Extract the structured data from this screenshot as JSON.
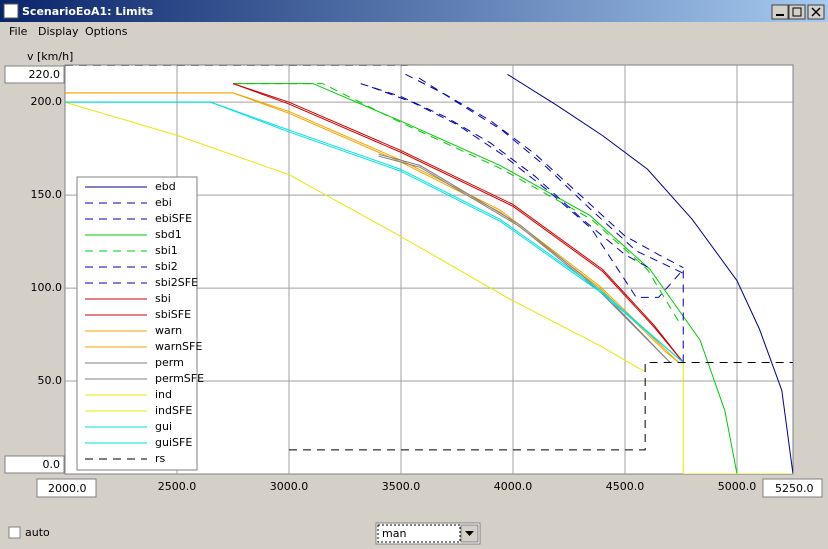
{
  "window": {
    "title": "ScenarioEoA1: Limits",
    "menu": [
      "File",
      "Display",
      "Options"
    ]
  },
  "chart_data": {
    "type": "line",
    "y_label": "v [km/h]",
    "xlim": [
      2000,
      5250
    ],
    "xlim_labels": [
      "2000.0",
      "5250.0"
    ],
    "ylim": [
      0,
      220
    ],
    "ylim_labels": [
      "0.0",
      "220.0"
    ],
    "xticks": [
      {
        "value": 2500,
        "label": "2500.0"
      },
      {
        "value": 3000,
        "label": "3000.0"
      },
      {
        "value": 3500,
        "label": "3500.0"
      },
      {
        "value": 4000,
        "label": "4000.0"
      },
      {
        "value": 4500,
        "label": "4500.0"
      },
      {
        "value": 5000,
        "label": "5000.0"
      }
    ],
    "yticks": [
      {
        "value": 50,
        "label": "50.0"
      },
      {
        "value": 100,
        "label": "100.0"
      },
      {
        "value": 150,
        "label": "150.0"
      },
      {
        "value": 200,
        "label": "200.0"
      }
    ],
    "grid": true,
    "series": [
      {
        "name": "ebd",
        "color": "#00008b",
        "style": "solid",
        "x": [
          3975,
          4200,
          4400,
          4600,
          4800,
          5000,
          5100,
          5200,
          5250
        ],
        "values": [
          215,
          198,
          182,
          164,
          137,
          104,
          78,
          45,
          0
        ]
      },
      {
        "name": "ebi",
        "color": "#0000b0",
        "style": "dashed",
        "x": [
          3520,
          3700,
          3900,
          4100,
          4300,
          4500,
          4650,
          4760
        ],
        "values": [
          215,
          204,
          190,
          172,
          150,
          128,
          118,
          111
        ]
      },
      {
        "name": "ebiSFE",
        "color": "#0000b0",
        "style": "dashed",
        "x": [
          3580,
          3750,
          3950,
          4150,
          4350,
          4550,
          4760
        ],
        "values": [
          213,
          200,
          185,
          165,
          142,
          120,
          108
        ]
      },
      {
        "name": "sbd1",
        "color": "#00cc00",
        "style": "solid",
        "x": [
          2750,
          3107,
          3496,
          3942,
          4344,
          4612,
          4835,
          4946,
          5000
        ],
        "values": [
          210,
          210,
          190,
          166,
          139,
          110,
          72,
          34,
          0
        ]
      },
      {
        "name": "sbi1",
        "color": "#00cc00",
        "style": "dashed",
        "x": [
          2750,
          3150,
          3500,
          3950,
          4350,
          4600,
          4750
        ],
        "values": [
          210,
          210,
          189,
          164,
          137,
          110,
          80
        ]
      },
      {
        "name": "sbi2",
        "color": "#0000b0",
        "style": "dashed",
        "x": [
          3320,
          3500,
          3700,
          3900,
          4100,
          4300,
          4500,
          4620
        ],
        "values": [
          210,
          203,
          192,
          178,
          160,
          138,
          118,
          110
        ]
      },
      {
        "name": "sbi2SFE",
        "color": "#0000b0",
        "style": "dashed",
        "x": [
          3370,
          3550,
          3750,
          3950,
          4150,
          4350,
          4550,
          4650,
          4760,
          4760
        ],
        "values": [
          208,
          200,
          188,
          172,
          153,
          132,
          95,
          95,
          110,
          60
        ]
      },
      {
        "name": "sbi",
        "color": "#cc0000",
        "style": "solid",
        "x": [
          2750,
          3000,
          3500,
          4000,
          4400,
          4630,
          4760
        ],
        "values": [
          210,
          200,
          174,
          145,
          110,
          80,
          60
        ]
      },
      {
        "name": "sbiSFE",
        "color": "#cc0000",
        "style": "solid",
        "x": [
          2750,
          3000,
          3500,
          4000,
          4400,
          4630,
          4760
        ],
        "values": [
          210,
          199,
          173,
          144,
          109,
          79,
          60
        ]
      },
      {
        "name": "warn",
        "color": "#f5a300",
        "style": "solid",
        "x": [
          2000,
          2750,
          3000,
          3496,
          3942,
          4388,
          4679,
          4740
        ],
        "values": [
          205,
          205,
          195,
          169,
          142,
          101,
          67,
          60
        ]
      },
      {
        "name": "warnSFE",
        "color": "#f5a300",
        "style": "solid",
        "x": [
          2000,
          2750,
          3000,
          3496,
          3942,
          4388,
          4679,
          4740
        ],
        "values": [
          205,
          205,
          194,
          168,
          141,
          100,
          66,
          60
        ]
      },
      {
        "name": "perm",
        "color": "#808080",
        "style": "solid",
        "x": [
          3400,
          3585,
          4031,
          4388,
          4701
        ],
        "values": [
          172,
          166,
          134,
          99,
          60
        ]
      },
      {
        "name": "permSFE",
        "color": "#808080",
        "style": "solid",
        "x": [
          3400,
          3585,
          4031,
          4388,
          4701
        ],
        "values": [
          171,
          165,
          133,
          98,
          60
        ]
      },
      {
        "name": "ind",
        "color": "#e8e800",
        "style": "solid",
        "x": [
          2000,
          2504,
          3000,
          3496,
          3987,
          4388,
          4589
        ],
        "values": [
          200,
          182,
          161,
          128,
          94,
          69,
          55
        ]
      },
      {
        "name": "indSFE",
        "color": "#e8e800",
        "style": "solid",
        "x": [
          4760,
          4760,
          5250
        ],
        "values": [
          60,
          0,
          0
        ]
      },
      {
        "name": "gui",
        "color": "#00e0e0",
        "style": "solid",
        "x": [
          2000,
          2650,
          3000,
          3496,
          3942,
          4388,
          4760
        ],
        "values": [
          200,
          200,
          185,
          164,
          137,
          99,
          60
        ]
      },
      {
        "name": "guiSFE",
        "color": "#00e0e0",
        "style": "solid",
        "x": [
          2000,
          2650,
          3000,
          3496,
          3942,
          4388,
          4760
        ],
        "values": [
          200,
          200,
          184,
          163,
          136,
          98,
          60
        ]
      },
      {
        "name": "rs",
        "color": "#000000",
        "style": "dashed",
        "x": [
          2000,
          3530,
          null,
          3000,
          4590,
          4590,
          5250
        ],
        "values": [
          220,
          220,
          null,
          13,
          13,
          60,
          60
        ]
      }
    ]
  },
  "controls": {
    "auto": "auto",
    "mode": "man"
  }
}
